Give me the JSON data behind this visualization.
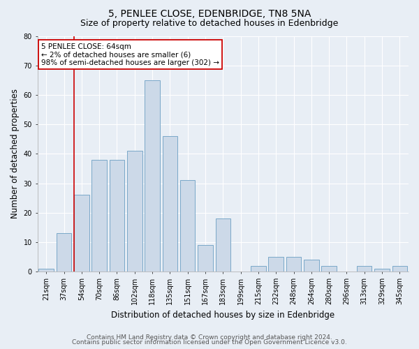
{
  "title": "5, PENLEE CLOSE, EDENBRIDGE, TN8 5NA",
  "subtitle": "Size of property relative to detached houses in Edenbridge",
  "xlabel": "Distribution of detached houses by size in Edenbridge",
  "ylabel": "Number of detached properties",
  "categories": [
    "21sqm",
    "37sqm",
    "54sqm",
    "70sqm",
    "86sqm",
    "102sqm",
    "118sqm",
    "135sqm",
    "151sqm",
    "167sqm",
    "183sqm",
    "199sqm",
    "215sqm",
    "232sqm",
    "248sqm",
    "264sqm",
    "280sqm",
    "296sqm",
    "313sqm",
    "329sqm",
    "345sqm"
  ],
  "values": [
    1,
    13,
    26,
    38,
    38,
    41,
    65,
    46,
    31,
    9,
    18,
    0,
    2,
    5,
    5,
    4,
    2,
    0,
    2,
    1,
    2
  ],
  "bar_color": "#ccd9e8",
  "bar_edge_color": "#7aa8c8",
  "annotation_text": "5 PENLEE CLOSE: 64sqm\n← 2% of detached houses are smaller (6)\n98% of semi-detached houses are larger (302) →",
  "annotation_box_color": "#ffffff",
  "annotation_box_edge_color": "#cc0000",
  "annotation_text_color": "#000000",
  "vline_color": "#cc0000",
  "ylim": [
    0,
    80
  ],
  "yticks": [
    0,
    10,
    20,
    30,
    40,
    50,
    60,
    70,
    80
  ],
  "background_color": "#e8eef5",
  "grid_color": "#ffffff",
  "footer_line1": "Contains HM Land Registry data © Crown copyright and database right 2024.",
  "footer_line2": "Contains public sector information licensed under the Open Government Licence v3.0.",
  "title_fontsize": 10,
  "subtitle_fontsize": 9,
  "xlabel_fontsize": 8.5,
  "ylabel_fontsize": 8.5,
  "tick_fontsize": 7,
  "annotation_fontsize": 7.5,
  "footer_fontsize": 6.5
}
